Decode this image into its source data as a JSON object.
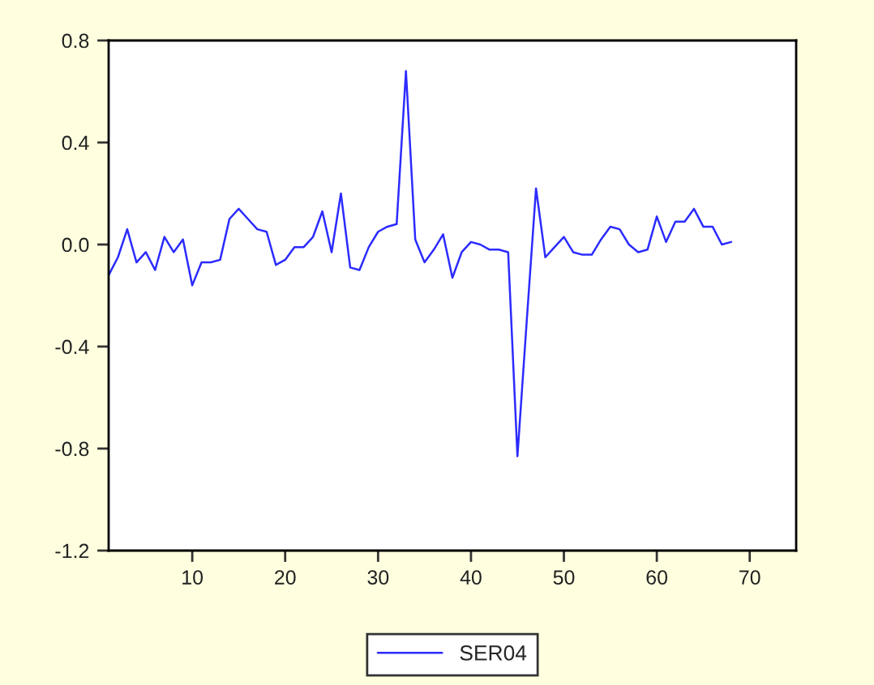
{
  "chart_data": {
    "type": "line",
    "x": [
      1,
      2,
      3,
      4,
      5,
      6,
      7,
      8,
      9,
      10,
      11,
      12,
      13,
      14,
      15,
      16,
      17,
      18,
      19,
      20,
      21,
      22,
      23,
      24,
      25,
      26,
      27,
      28,
      29,
      30,
      31,
      32,
      33,
      34,
      35,
      36,
      37,
      38,
      39,
      40,
      41,
      42,
      43,
      44,
      45,
      46,
      47,
      48,
      49,
      50,
      51,
      52,
      53,
      54,
      55,
      56,
      57,
      58,
      59,
      60,
      61,
      62,
      63,
      64,
      65,
      66,
      67,
      68
    ],
    "series": [
      {
        "name": "SER04",
        "color": "#2b2bff",
        "values": [
          -0.12,
          -0.05,
          0.06,
          -0.07,
          -0.03,
          -0.1,
          0.03,
          -0.03,
          0.02,
          -0.16,
          -0.07,
          -0.07,
          -0.06,
          0.1,
          0.14,
          0.1,
          0.06,
          0.05,
          -0.08,
          -0.06,
          -0.01,
          -0.01,
          0.03,
          0.13,
          -0.03,
          0.2,
          -0.09,
          -0.1,
          -0.01,
          0.05,
          0.07,
          0.08,
          0.68,
          0.02,
          -0.07,
          -0.02,
          0.04,
          -0.13,
          -0.03,
          0.01,
          0.0,
          -0.02,
          -0.02,
          -0.03,
          -0.83,
          -0.3,
          0.22,
          -0.05,
          -0.01,
          0.03,
          -0.03,
          -0.04,
          -0.04,
          0.02,
          0.07,
          0.06,
          0.0,
          -0.03,
          -0.02,
          0.11,
          0.01,
          0.09,
          0.09,
          0.14,
          0.07,
          0.07,
          0.0,
          0.01
        ]
      }
    ],
    "xlim": [
      1,
      75
    ],
    "xticks": [
      10,
      20,
      30,
      40,
      50,
      60,
      70
    ],
    "ylim": [
      -1.2,
      0.8
    ],
    "yticks": [
      0.8,
      0.4,
      {
        "value": 0,
        "label": "0.0"
      },
      -0.4,
      -0.8,
      -1.2
    ],
    "grid": false,
    "legend": "bottom"
  }
}
